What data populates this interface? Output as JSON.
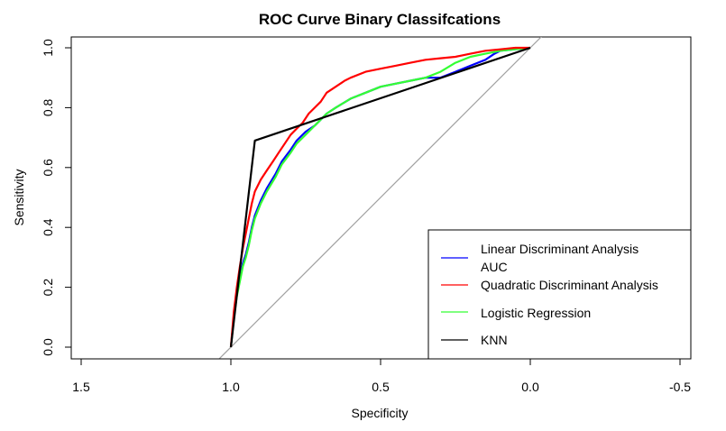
{
  "chart_data": {
    "type": "line",
    "title": "ROC Curve Binary Classifcations",
    "xlabel": "Specificity",
    "ylabel": "Sensitivity",
    "xlim": [
      1.5,
      -0.5
    ],
    "ylim": [
      0.0,
      1.0
    ],
    "x_reversed": true,
    "x_ticks": [
      1.5,
      1.0,
      0.5,
      0.0,
      -0.5
    ],
    "x_tick_labels": [
      "1.5",
      "1.0",
      "0.5",
      "0.0",
      "-0.5"
    ],
    "y_ticks": [
      0.0,
      0.2,
      0.4,
      0.6,
      0.8,
      1.0
    ],
    "y_tick_labels": [
      "0.0",
      "0.2",
      "0.4",
      "0.6",
      "0.8",
      "1.0"
    ],
    "grid": false,
    "legend_position": "bottom-right",
    "reference_line": {
      "color": "#a0a0a0",
      "points": [
        [
          1.0,
          0.0
        ],
        [
          0.0,
          1.0
        ]
      ]
    },
    "series": [
      {
        "name": "Linear Discriminant Analysis AUC",
        "color": "#0000ff",
        "x": [
          1.0,
          0.99,
          0.98,
          0.97,
          0.96,
          0.95,
          0.94,
          0.93,
          0.92,
          0.9,
          0.88,
          0.85,
          0.83,
          0.8,
          0.78,
          0.75,
          0.72,
          0.7,
          0.68,
          0.65,
          0.6,
          0.55,
          0.5,
          0.45,
          0.4,
          0.35,
          0.3,
          0.25,
          0.2,
          0.15,
          0.12,
          0.1,
          0.05,
          0.0
        ],
        "y": [
          0.0,
          0.1,
          0.18,
          0.23,
          0.28,
          0.31,
          0.35,
          0.4,
          0.44,
          0.49,
          0.53,
          0.58,
          0.62,
          0.66,
          0.69,
          0.72,
          0.74,
          0.76,
          0.78,
          0.8,
          0.83,
          0.85,
          0.87,
          0.88,
          0.89,
          0.9,
          0.9,
          0.92,
          0.94,
          0.96,
          0.98,
          0.99,
          0.995,
          1.0
        ]
      },
      {
        "name": "Quadratic Discriminant Analysis",
        "color": "#ff0000",
        "x": [
          1.0,
          0.99,
          0.98,
          0.97,
          0.96,
          0.95,
          0.94,
          0.93,
          0.92,
          0.9,
          0.88,
          0.86,
          0.84,
          0.82,
          0.8,
          0.78,
          0.76,
          0.74,
          0.72,
          0.7,
          0.68,
          0.65,
          0.62,
          0.6,
          0.55,
          0.5,
          0.45,
          0.4,
          0.35,
          0.3,
          0.25,
          0.2,
          0.15,
          0.1,
          0.05,
          0.0
        ],
        "y": [
          0.0,
          0.12,
          0.2,
          0.27,
          0.33,
          0.38,
          0.43,
          0.48,
          0.52,
          0.56,
          0.59,
          0.62,
          0.65,
          0.68,
          0.71,
          0.73,
          0.75,
          0.78,
          0.8,
          0.82,
          0.85,
          0.87,
          0.89,
          0.9,
          0.92,
          0.93,
          0.94,
          0.95,
          0.96,
          0.965,
          0.97,
          0.98,
          0.99,
          0.995,
          1.0,
          1.0
        ]
      },
      {
        "name": "Logistic Regression",
        "color": "#33ff33",
        "x": [
          1.0,
          0.99,
          0.98,
          0.97,
          0.96,
          0.95,
          0.94,
          0.93,
          0.92,
          0.9,
          0.88,
          0.85,
          0.83,
          0.8,
          0.78,
          0.75,
          0.72,
          0.7,
          0.68,
          0.65,
          0.6,
          0.55,
          0.5,
          0.45,
          0.4,
          0.35,
          0.3,
          0.25,
          0.2,
          0.15,
          0.1,
          0.05,
          0.0
        ],
        "y": [
          0.0,
          0.1,
          0.17,
          0.22,
          0.27,
          0.3,
          0.34,
          0.39,
          0.43,
          0.48,
          0.52,
          0.57,
          0.61,
          0.65,
          0.68,
          0.71,
          0.74,
          0.76,
          0.78,
          0.8,
          0.83,
          0.85,
          0.87,
          0.88,
          0.89,
          0.9,
          0.92,
          0.95,
          0.97,
          0.98,
          0.99,
          0.995,
          1.0
        ]
      },
      {
        "name": "KNN",
        "color": "#000000",
        "x": [
          1.0,
          0.92,
          0.0
        ],
        "y": [
          0.0,
          0.69,
          1.0
        ]
      }
    ]
  }
}
